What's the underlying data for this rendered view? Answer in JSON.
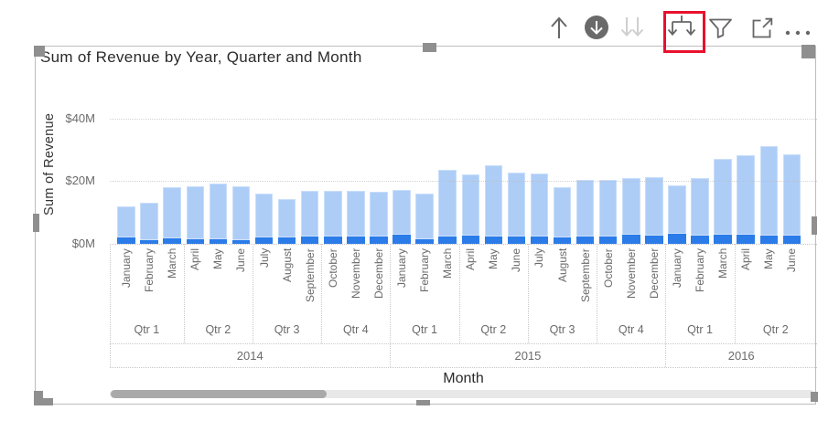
{
  "toolbar": {
    "icons": [
      {
        "name": "drill-up",
        "enabled": true
      },
      {
        "name": "drill-down-mode",
        "enabled": true
      },
      {
        "name": "go-to-next-level",
        "enabled": false
      },
      {
        "name": "expand-all-down-one-level",
        "enabled": true,
        "highlighted": true
      },
      {
        "name": "filters",
        "enabled": true
      },
      {
        "name": "focus-mode",
        "enabled": true
      },
      {
        "name": "more-options",
        "enabled": true
      }
    ],
    "highlight_box_color": "#E8112D"
  },
  "visual": {
    "title": "Sum of Revenue by Year, Quarter and Month",
    "selected": true
  },
  "chart_data": {
    "type": "bar",
    "title": "Sum of Revenue by Year, Quarter and Month",
    "xlabel": "Month",
    "ylabel": "Sum of Revenue",
    "unit": "$M",
    "ylim": [
      0,
      40
    ],
    "yticks": [
      {
        "value": 0,
        "label": "$0M"
      },
      {
        "value": 20,
        "label": "$20M"
      },
      {
        "value": 40,
        "label": "$40M"
      }
    ],
    "grid": true,
    "legend": false,
    "bar_color_total": "#ADCDF7",
    "bar_color_highlight": "#2B7CE9",
    "x_hierarchy": [
      "Year",
      "Quarter",
      "Month"
    ],
    "columns": [
      {
        "year": "2014",
        "quarter": "Qtr 1",
        "month": "January",
        "total": 11.9,
        "highlight": 2.0
      },
      {
        "year": "2014",
        "quarter": "Qtr 1",
        "month": "February",
        "total": 13.0,
        "highlight": 1.2
      },
      {
        "year": "2014",
        "quarter": "Qtr 1",
        "month": "March",
        "total": 18.1,
        "highlight": 1.8
      },
      {
        "year": "2014",
        "quarter": "Qtr 2",
        "month": "April",
        "total": 18.2,
        "highlight": 1.5
      },
      {
        "year": "2014",
        "quarter": "Qtr 2",
        "month": "May",
        "total": 19.2,
        "highlight": 1.5
      },
      {
        "year": "2014",
        "quarter": "Qtr 2",
        "month": "June",
        "total": 18.3,
        "highlight": 1.3
      },
      {
        "year": "2014",
        "quarter": "Qtr 3",
        "month": "July",
        "total": 16.1,
        "highlight": 1.9
      },
      {
        "year": "2014",
        "quarter": "Qtr 3",
        "month": "August",
        "total": 14.3,
        "highlight": 2.1
      },
      {
        "year": "2014",
        "quarter": "Qtr 3",
        "month": "September",
        "total": 16.8,
        "highlight": 2.2
      },
      {
        "year": "2014",
        "quarter": "Qtr 4",
        "month": "October",
        "total": 16.9,
        "highlight": 2.4
      },
      {
        "year": "2014",
        "quarter": "Qtr 4",
        "month": "November",
        "total": 16.8,
        "highlight": 2.2
      },
      {
        "year": "2014",
        "quarter": "Qtr 4",
        "month": "December",
        "total": 16.7,
        "highlight": 2.3
      },
      {
        "year": "2015",
        "quarter": "Qtr 1",
        "month": "January",
        "total": 17.1,
        "highlight": 2.8
      },
      {
        "year": "2015",
        "quarter": "Qtr 1",
        "month": "February",
        "total": 16.1,
        "highlight": 1.4
      },
      {
        "year": "2015",
        "quarter": "Qtr 1",
        "month": "March",
        "total": 23.5,
        "highlight": 2.3
      },
      {
        "year": "2015",
        "quarter": "Qtr 2",
        "month": "April",
        "total": 22.0,
        "highlight": 2.5
      },
      {
        "year": "2015",
        "quarter": "Qtr 2",
        "month": "May",
        "total": 25.0,
        "highlight": 2.3
      },
      {
        "year": "2015",
        "quarter": "Qtr 2",
        "month": "June",
        "total": 22.7,
        "highlight": 2.3
      },
      {
        "year": "2015",
        "quarter": "Qtr 3",
        "month": "July",
        "total": 22.4,
        "highlight": 2.2
      },
      {
        "year": "2015",
        "quarter": "Qtr 3",
        "month": "August",
        "total": 18.0,
        "highlight": 2.1
      },
      {
        "year": "2015",
        "quarter": "Qtr 3",
        "month": "September",
        "total": 20.3,
        "highlight": 2.3
      },
      {
        "year": "2015",
        "quarter": "Qtr 4",
        "month": "October",
        "total": 20.3,
        "highlight": 2.3
      },
      {
        "year": "2015",
        "quarter": "Qtr 4",
        "month": "November",
        "total": 20.9,
        "highlight": 2.8
      },
      {
        "year": "2015",
        "quarter": "Qtr 4",
        "month": "December",
        "total": 21.2,
        "highlight": 2.5
      },
      {
        "year": "2016",
        "quarter": "Qtr 1",
        "month": "January",
        "total": 18.5,
        "highlight": 3.3
      },
      {
        "year": "2016",
        "quarter": "Qtr 1",
        "month": "February",
        "total": 21.0,
        "highlight": 2.6
      },
      {
        "year": "2016",
        "quarter": "Qtr 1",
        "month": "March",
        "total": 27.1,
        "highlight": 2.8
      },
      {
        "year": "2016",
        "quarter": "Qtr 2",
        "month": "April",
        "total": 28.2,
        "highlight": 2.8
      },
      {
        "year": "2016",
        "quarter": "Qtr 2",
        "month": "May",
        "total": 31.1,
        "highlight": 2.5
      },
      {
        "year": "2016",
        "quarter": "Qtr 2",
        "month": "June",
        "total": 28.5,
        "highlight": 2.7
      }
    ]
  }
}
